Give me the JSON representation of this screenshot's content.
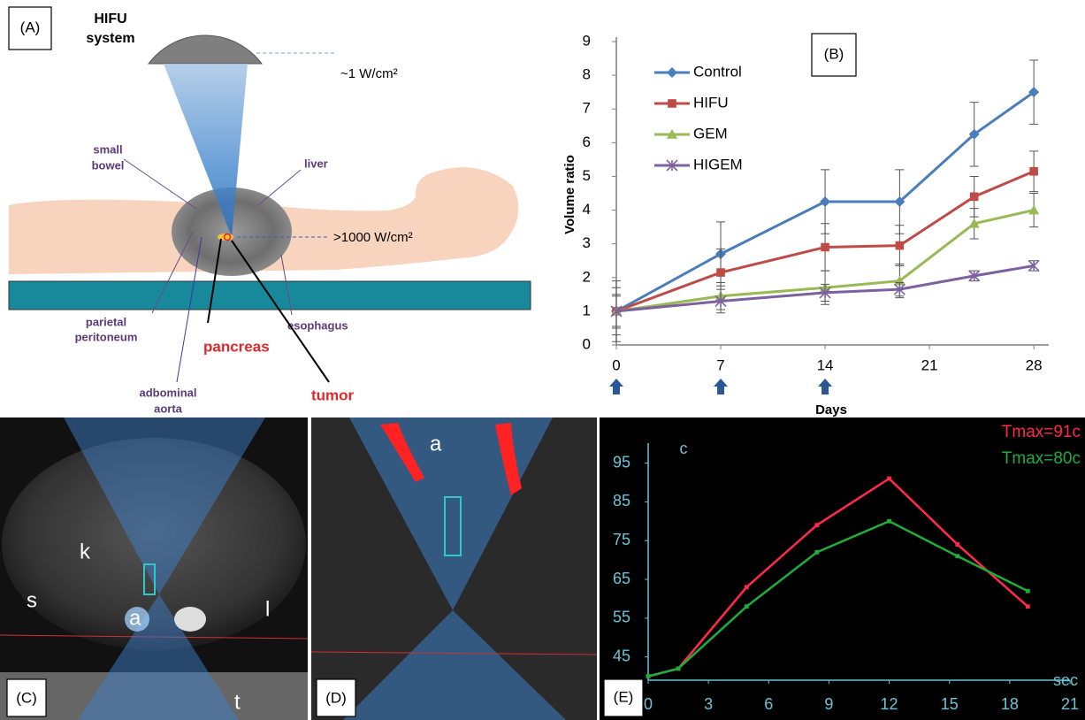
{
  "panels": {
    "a": {
      "label": "(A)",
      "system": [
        "HIFU",
        "system"
      ],
      "low_intensity": "~1 W/cm²",
      "high_intensity": ">1000 W/cm²",
      "small_bowel": [
        "small",
        "bowel"
      ],
      "liver": "liver",
      "parietal_peritoneum": [
        "parietal",
        "peritoneum"
      ],
      "esophagus": "esophagus",
      "pancreas": "pancreas",
      "aorta": [
        "adbominal",
        "aorta"
      ],
      "tumor": "tumor"
    },
    "c": {
      "label": "(C)",
      "k": "k",
      "a": "a",
      "s": "s",
      "l": "l",
      "t": "t"
    },
    "d": {
      "label": "(D)",
      "a": "a"
    }
  },
  "chart_data": [
    {
      "type": "line",
      "label": "(B)",
      "ylabel": "Volume ratio",
      "xlabel": "Days",
      "x": [
        0,
        7,
        14,
        19,
        24,
        28
      ],
      "xlim": [
        0,
        29
      ],
      "xticks": [
        0,
        7,
        14,
        21,
        28
      ],
      "ylim": [
        0,
        9
      ],
      "yticks": [
        0,
        1,
        2,
        3,
        4,
        5,
        6,
        7,
        8,
        9
      ],
      "arrows_at": [
        0,
        7,
        14
      ],
      "legend": "upper left",
      "axis_color": "#7f7f7f",
      "text_color": "#000000",
      "series": [
        {
          "name": "Control",
          "color": "#4a7ebb",
          "marker": "diamond",
          "values": [
            1,
            2.7,
            4.25,
            4.25,
            6.25,
            7.5
          ],
          "errors": [
            0.9,
            0.95,
            0.95,
            0.95,
            0.95,
            0.95
          ]
        },
        {
          "name": "HIFU",
          "color": "#be4b48",
          "marker": "square",
          "values": [
            1,
            2.15,
            2.9,
            2.95,
            4.4,
            5.15
          ],
          "errors": [
            0.7,
            0.7,
            0.7,
            0.6,
            0.6,
            0.6
          ]
        },
        {
          "name": "GEM",
          "color": "#98b954",
          "marker": "triangle",
          "values": [
            1,
            1.45,
            1.7,
            1.9,
            3.6,
            4.0
          ],
          "errors": [
            0.5,
            0.4,
            0.5,
            0.5,
            0.45,
            0.5
          ]
        },
        {
          "name": "HIGEM",
          "color": "#7d60a0",
          "marker": "x",
          "values": [
            1,
            1.3,
            1.55,
            1.65,
            2.05,
            2.35
          ],
          "errors": [
            0.45,
            0.35,
            0.25,
            0.2,
            0.15,
            0.15
          ]
        }
      ]
    },
    {
      "type": "line",
      "label": "(E)",
      "ylabel": "c",
      "xlabel": "sec",
      "x": [
        0,
        1.5,
        4.9,
        8.4,
        12,
        15.4,
        18.9
      ],
      "xlim": [
        0,
        21
      ],
      "xticks": [
        0,
        3,
        6,
        9,
        12,
        15,
        18,
        21
      ],
      "ylim": [
        39,
        99
      ],
      "yticks": [
        45,
        55,
        65,
        75,
        85,
        95
      ],
      "legend": "upper right",
      "axis_color": "#6cc3d5",
      "text_color": "#6cc3d5",
      "background": "#000000",
      "series": [
        {
          "name": "Tmax=91c",
          "color": "#ff2a4a",
          "marker": "square",
          "values": [
            40,
            42,
            63,
            79,
            91,
            74,
            58
          ]
        },
        {
          "name": "Tmax=80c",
          "color": "#1fae3a",
          "marker": "square",
          "values": [
            40,
            42,
            58,
            72,
            80,
            71,
            62
          ]
        }
      ]
    }
  ]
}
